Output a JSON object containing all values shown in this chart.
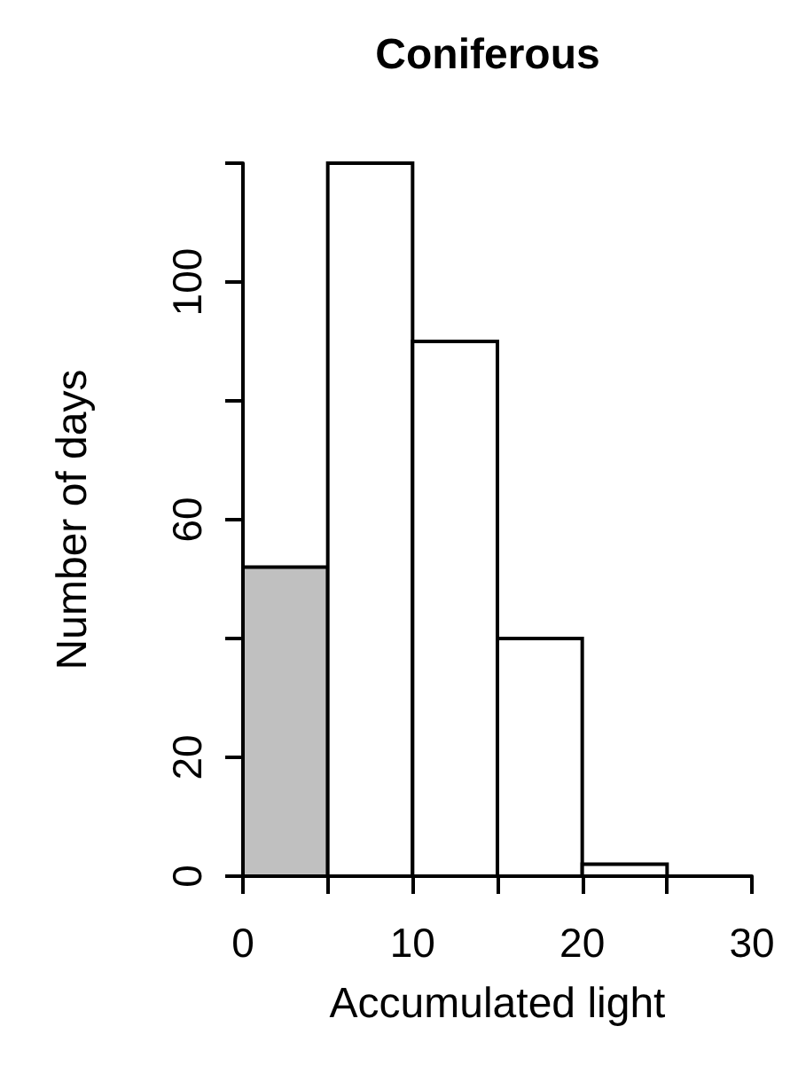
{
  "chart_data": {
    "type": "histogram",
    "title": "Coniferous",
    "xlabel": "Accumulated light",
    "ylabel": "Number of days",
    "bins": [
      0,
      5,
      10,
      15,
      20,
      25
    ],
    "values": [
      52,
      120,
      90,
      40,
      2
    ],
    "colors": [
      "#c0c0c0",
      "#ffffff",
      "#ffffff",
      "#ffffff",
      "#ffffff"
    ],
    "xlim": [
      0,
      30
    ],
    "xticks": [
      0,
      {
        "value": 5,
        "label": null
      },
      10,
      {
        "value": 15,
        "label": null
      },
      20,
      {
        "value": 25,
        "label": null
      },
      30
    ],
    "ylim": [
      0,
      120
    ],
    "yticks": [
      0,
      20,
      {
        "value": 40,
        "label": null
      },
      60,
      {
        "value": 80,
        "label": null
      },
      100,
      {
        "value": 120,
        "label": null
      }
    ]
  }
}
